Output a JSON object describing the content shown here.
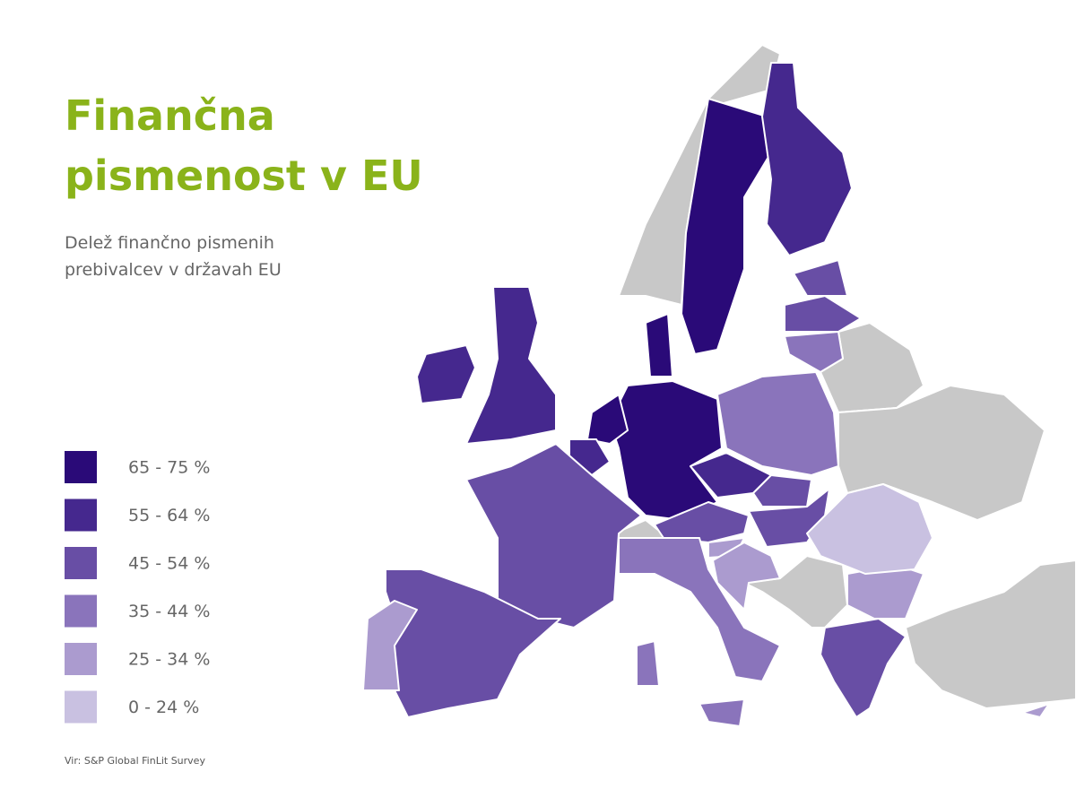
{
  "title_lines": [
    "Finančna",
    "pismenost v EU"
  ],
  "subtitle_lines": [
    "Delež finančno pismenih",
    "prebivalcev v državah EU"
  ],
  "legend": [
    {
      "label": "65 - 75 %",
      "color": "#2a0a78"
    },
    {
      "label": "55 - 64 %",
      "color": "#45288e"
    },
    {
      "label": "45 - 54 %",
      "color": "#684ea5"
    },
    {
      "label": "35 - 44 %",
      "color": "#8a74bb"
    },
    {
      "label": "25 - 34 %",
      "color": "#ab9bcf"
    },
    {
      "label": "0 - 24 %",
      "color": "#c9c1e1"
    }
  ],
  "non_eu_color": "#c8c8c8",
  "source": "Vir: S&P Global FinLit Survey"
}
